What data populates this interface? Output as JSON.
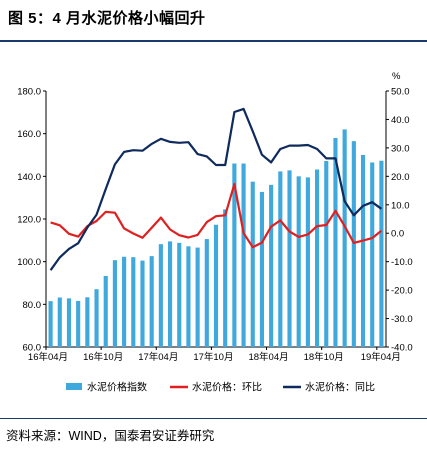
{
  "figure": {
    "title": "图 5：4 月水泥价格小幅回升",
    "source": "资料来源：WIND，国泰君安证券研究"
  },
  "chart_data": {
    "type": "bar+line",
    "y_left": {
      "min": 60,
      "max": 180,
      "ticks": [
        "60.0",
        "80.0",
        "100.0",
        "120.0",
        "140.0",
        "160.0",
        "180.0"
      ]
    },
    "y_right": {
      "min": -40,
      "max": 50,
      "unit": "%",
      "ticks": [
        "-40.0",
        "-30.0",
        "-20.0",
        "-10.0",
        "0.0",
        "10.0",
        "20.0",
        "30.0",
        "40.0",
        "50.0"
      ]
    },
    "x_ticks": [
      "16年04月",
      "16年10月",
      "17年04月",
      "17年10月",
      "18年04月",
      "18年10月",
      "19年04月"
    ],
    "legend": [
      "水泥价格指数",
      "水泥价格：环比",
      "水泥价格：同比"
    ],
    "colors": {
      "bar": "#3fa9dd",
      "mom": "#e02020",
      "yoy": "#0f2a5c"
    },
    "bars": [
      81.5,
      83.2,
      82.8,
      81.6,
      83.3,
      87.1,
      93.3,
      100.7,
      102.3,
      102.1,
      100.5,
      102.6,
      108.2,
      109.5,
      108.8,
      107.2,
      106.6,
      110.6,
      117.3,
      124.5,
      146.0,
      146.0,
      137.5,
      132.7,
      136.0,
      142.3,
      142.8,
      140.0,
      139.5,
      143.2,
      147.2,
      158.0,
      162.0,
      156.5,
      150.0,
      146.5,
      147.3
    ],
    "mom": [
      3.8,
      2.8,
      -0.2,
      -1.2,
      2.5,
      4.3,
      7.5,
      7.2,
      1.7,
      -0.1,
      -1.6,
      1.9,
      5.5,
      1.3,
      -0.7,
      -1.5,
      -0.6,
      3.9,
      6.0,
      6.3,
      17.3,
      0.0,
      -4.9,
      -3.3,
      2.3,
      4.5,
      0.6,
      -1.3,
      -0.4,
      2.5,
      2.9,
      7.9,
      2.5,
      -3.4,
      -2.6,
      -1.7,
      0.9
    ],
    "yoy": [
      -13.0,
      -8.5,
      -5.5,
      -3.5,
      2.0,
      6.5,
      15.5,
      24.2,
      28.6,
      29.2,
      29.0,
      31.4,
      33.2,
      32.1,
      31.8,
      32.0,
      27.8,
      27.0,
      24.0,
      24.0,
      42.6,
      43.7,
      35.8,
      27.6,
      24.9,
      29.6,
      30.8,
      30.8,
      31.0,
      29.6,
      26.3,
      26.3,
      11.3,
      6.3,
      9.6,
      10.9,
      8.6
    ]
  }
}
